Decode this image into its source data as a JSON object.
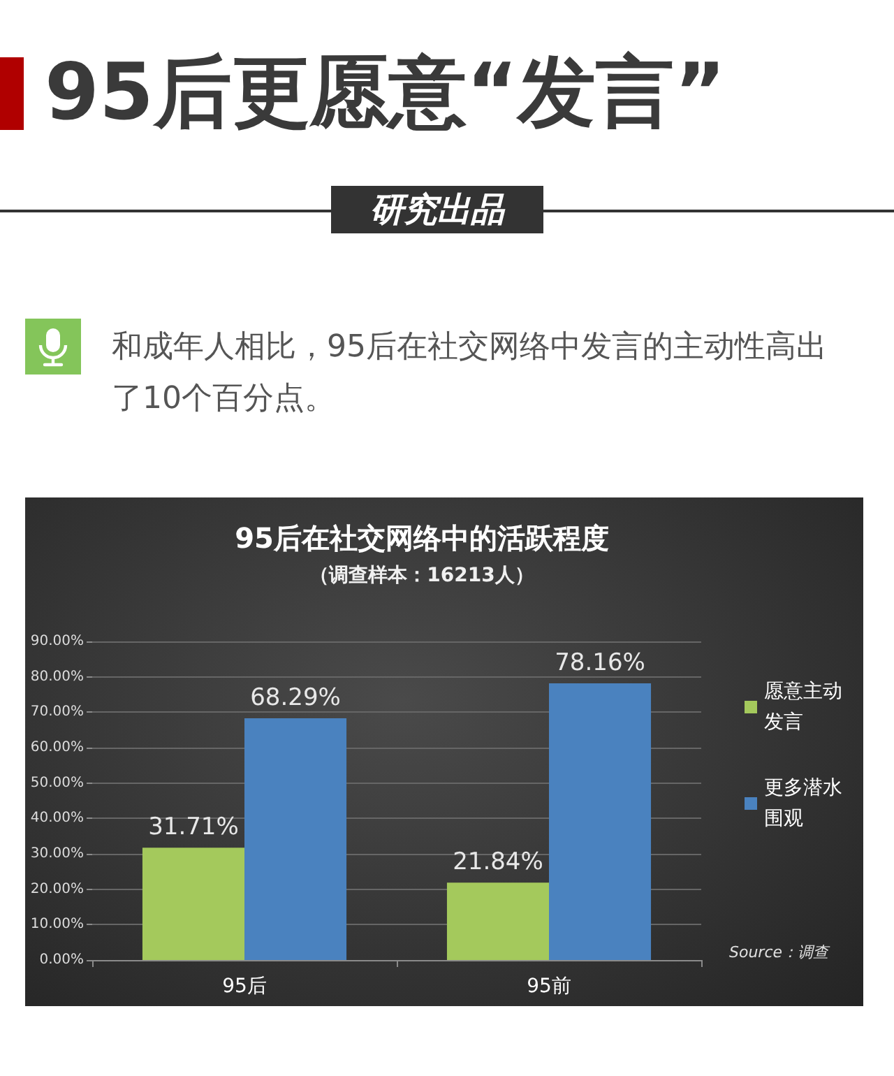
{
  "chart_data": {
    "type": "bar",
    "title": "95后在社交网络中的活跃程度",
    "subtitle": "（调查样本：16213人）",
    "categories": [
      "95后",
      "95前"
    ],
    "series": [
      {
        "name": "愿意主动发言",
        "color": "#a4c95c",
        "values": [
          31.71,
          21.84
        ],
        "value_labels": [
          "31.71%",
          "21.84%"
        ]
      },
      {
        "name": "更多潜水围观",
        "color": "#4a82bf",
        "values": [
          68.29,
          78.16
        ],
        "value_labels": [
          "68.29%",
          "78.16%"
        ]
      }
    ],
    "ylim": [
      0,
      90
    ],
    "yticks": [
      {
        "value": 0,
        "label": "0.00%"
      },
      {
        "value": 10,
        "label": "10.00%"
      },
      {
        "value": 20,
        "label": "20.00%"
      },
      {
        "value": 30,
        "label": "30.00%"
      },
      {
        "value": 40,
        "label": "40.00%"
      },
      {
        "value": 50,
        "label": "50.00%"
      },
      {
        "value": 60,
        "label": "60.00%"
      },
      {
        "value": 70,
        "label": "70.00%"
      },
      {
        "value": 80,
        "label": "80.00%"
      },
      {
        "value": 90,
        "label": "90.00%"
      }
    ],
    "grid": "y",
    "legend": "right",
    "annotations": [
      "95后更愿意“发言”",
      "研究出品",
      "和成年人相比，95后在社交网络中发言的主动性高出了10个百分点。",
      "Source：调查"
    ]
  }
}
